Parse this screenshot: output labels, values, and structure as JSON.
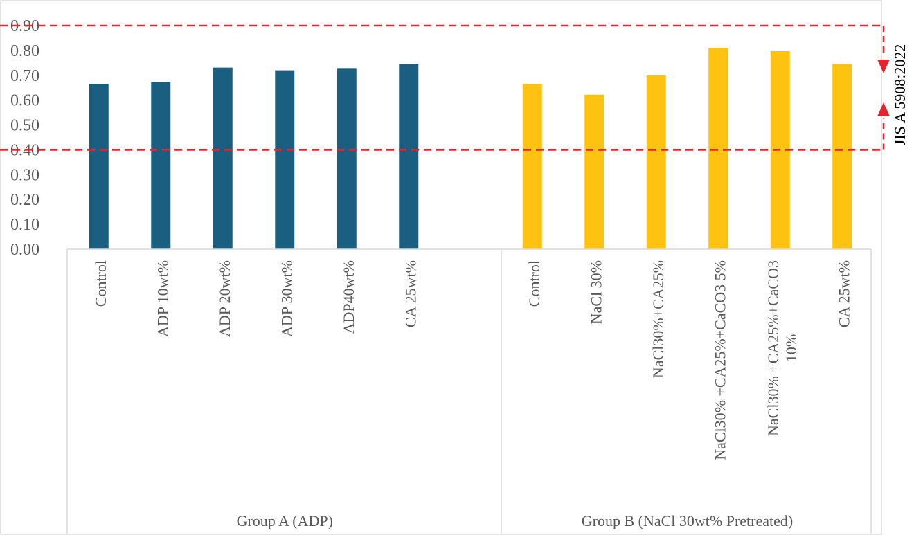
{
  "chart_data": {
    "type": "bar",
    "title": "",
    "xlabel": "",
    "ylabel": "",
    "ylim": [
      0,
      0.9
    ],
    "yticks": [
      "0.00",
      "0.10",
      "0.20",
      "0.30",
      "0.40",
      "0.50",
      "0.60",
      "0.70",
      "0.80",
      "0.90"
    ],
    "grid": false,
    "groups": [
      {
        "name": "Group A (ADP)",
        "color": "#1a5e80",
        "categories": [
          [
            "Control"
          ],
          [
            "ADP 10wt%"
          ],
          [
            "ADP 20wt%"
          ],
          [
            "ADP 30wt%"
          ],
          [
            "ADP40wt%"
          ],
          [
            "CA 25wt%"
          ]
        ],
        "values": [
          0.665,
          0.673,
          0.731,
          0.72,
          0.729,
          0.744
        ]
      },
      {
        "name": "Group B (NaCl 30wt% Pretreated)",
        "color": "#fec311",
        "categories": [
          [
            "Control"
          ],
          [
            "NaCl 30%"
          ],
          [
            "NaCl30%+CA25%"
          ],
          [
            "NaCl30% +CA25%+CaCO3 5%"
          ],
          [
            "NaCl30% +CA25%+CaCO3",
            "10%"
          ],
          [
            "CA 25wt%"
          ]
        ],
        "values": [
          0.665,
          0.622,
          0.7,
          0.81,
          0.797,
          0.745
        ]
      }
    ],
    "reference_lines": [
      {
        "value": 0.9,
        "color": "#e8232a"
      },
      {
        "value": 0.4,
        "color": "#e8232a"
      }
    ],
    "standard_label": "JIS A 5908:2022"
  }
}
